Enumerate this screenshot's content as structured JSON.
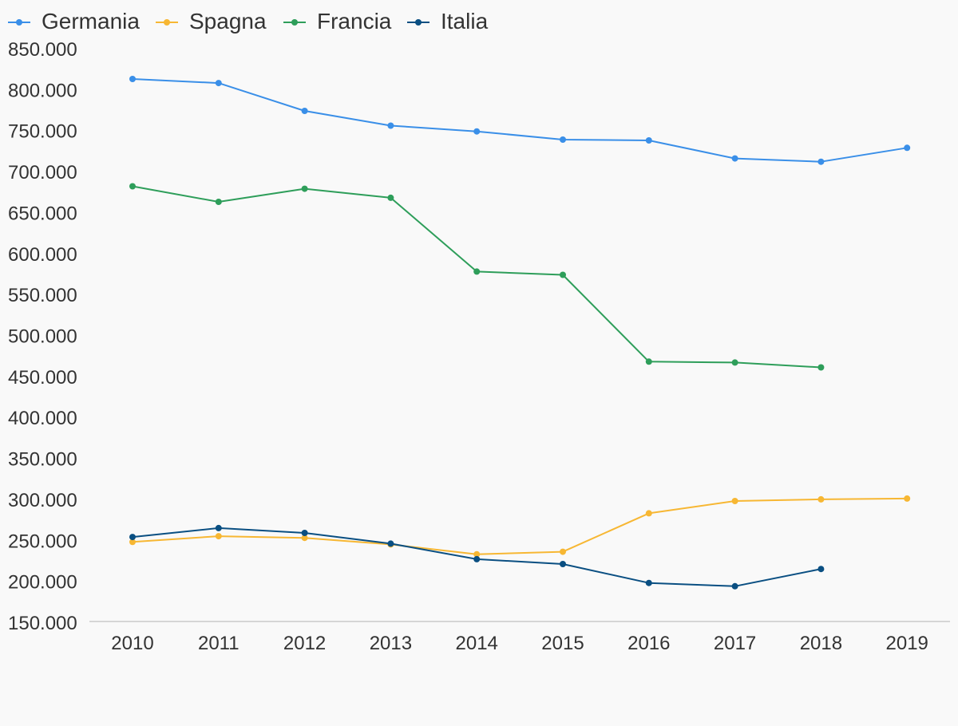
{
  "chart_data": {
    "type": "line",
    "title": "",
    "xlabel": "",
    "ylabel": "",
    "legend_position": "top-left",
    "grid": false,
    "x": [
      2010,
      2011,
      2012,
      2013,
      2014,
      2015,
      2016,
      2017,
      2018,
      2019
    ],
    "x_tick_labels": [
      "2010",
      "2011",
      "2012",
      "2013",
      "2014",
      "2015",
      "2016",
      "2017",
      "2018",
      "2019"
    ],
    "ylim": [
      150000,
      850000
    ],
    "y_ticks": [
      150000,
      200000,
      250000,
      300000,
      350000,
      400000,
      450000,
      500000,
      550000,
      600000,
      650000,
      700000,
      750000,
      800000,
      850000
    ],
    "y_tick_labels": [
      "150.000",
      "200.000",
      "250.000",
      "300.000",
      "350.000",
      "400.000",
      "450.000",
      "500.000",
      "550.000",
      "600.000",
      "650.000",
      "700.000",
      "750.000",
      "800.000",
      "850.000"
    ],
    "series": [
      {
        "name": "Germania",
        "color": "#3a8fe8",
        "values": [
          814000,
          809000,
          775000,
          757000,
          750000,
          740000,
          739000,
          717000,
          713000,
          730000
        ]
      },
      {
        "name": "Spagna",
        "color": "#f7b733",
        "values": [
          249000,
          256000,
          254000,
          246000,
          234000,
          237000,
          284000,
          299000,
          301000,
          302000
        ]
      },
      {
        "name": "Francia",
        "color": "#2e9e5a",
        "values": [
          683000,
          664000,
          680000,
          669000,
          579000,
          575000,
          469000,
          468000,
          462000,
          null
        ]
      },
      {
        "name": "Italia",
        "color": "#0a4f82",
        "values": [
          255000,
          266000,
          260000,
          247000,
          228000,
          222000,
          199000,
          195000,
          216000,
          null
        ]
      }
    ]
  }
}
